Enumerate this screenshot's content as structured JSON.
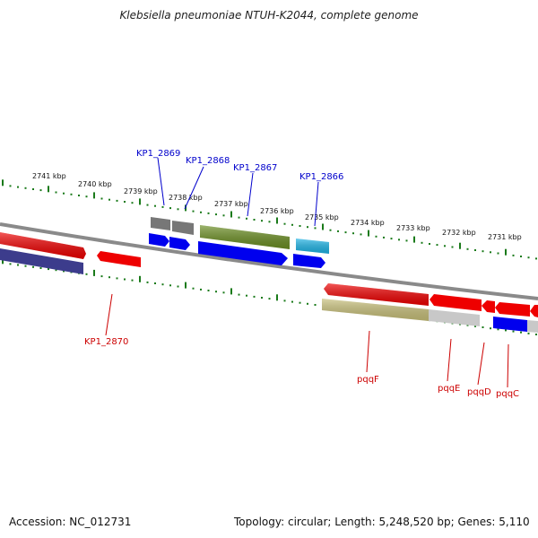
{
  "title": "Klebsiella pneumoniae NTUH-K2044, complete genome",
  "footer": {
    "accession": "Accession: NC_012731",
    "topology": "Topology: circular; Length: 5,248,520 bp; Genes: 5,110"
  },
  "ruler_ticks": [
    "2741 kbp",
    "2740 kbp",
    "2739 kbp",
    "2738 kbp",
    "2737 kbp",
    "2736 kbp",
    "2735 kbp",
    "2734 kbp",
    "2733 kbp",
    "2732 kbp",
    "2731 kbp"
  ],
  "colors": {
    "ruler_tick": "#1a7a1a",
    "backbone": "#888888",
    "gene_label_top": "#0000cc",
    "gene_label_bottom": "#cc0000",
    "red": "#ee0000",
    "blue": "#0000ee",
    "navy": "#3c3c8c",
    "grey": "#777777",
    "olive": "#6b8e23",
    "cyan": "#1eb4e6",
    "khaki": "#c8c07a",
    "light_grey": "#c8c8c8"
  },
  "gene_labels": {
    "kp1_2869": "KP1_2869",
    "kp1_2868": "KP1_2868",
    "kp1_2867": "KP1_2867",
    "kp1_2866": "KP1_2866",
    "kp1_2870": "KP1_2870",
    "pqqf": "pqqF",
    "pqqe": "pqqE",
    "pqqd": "pqqD",
    "pqqc": "pqqC"
  }
}
